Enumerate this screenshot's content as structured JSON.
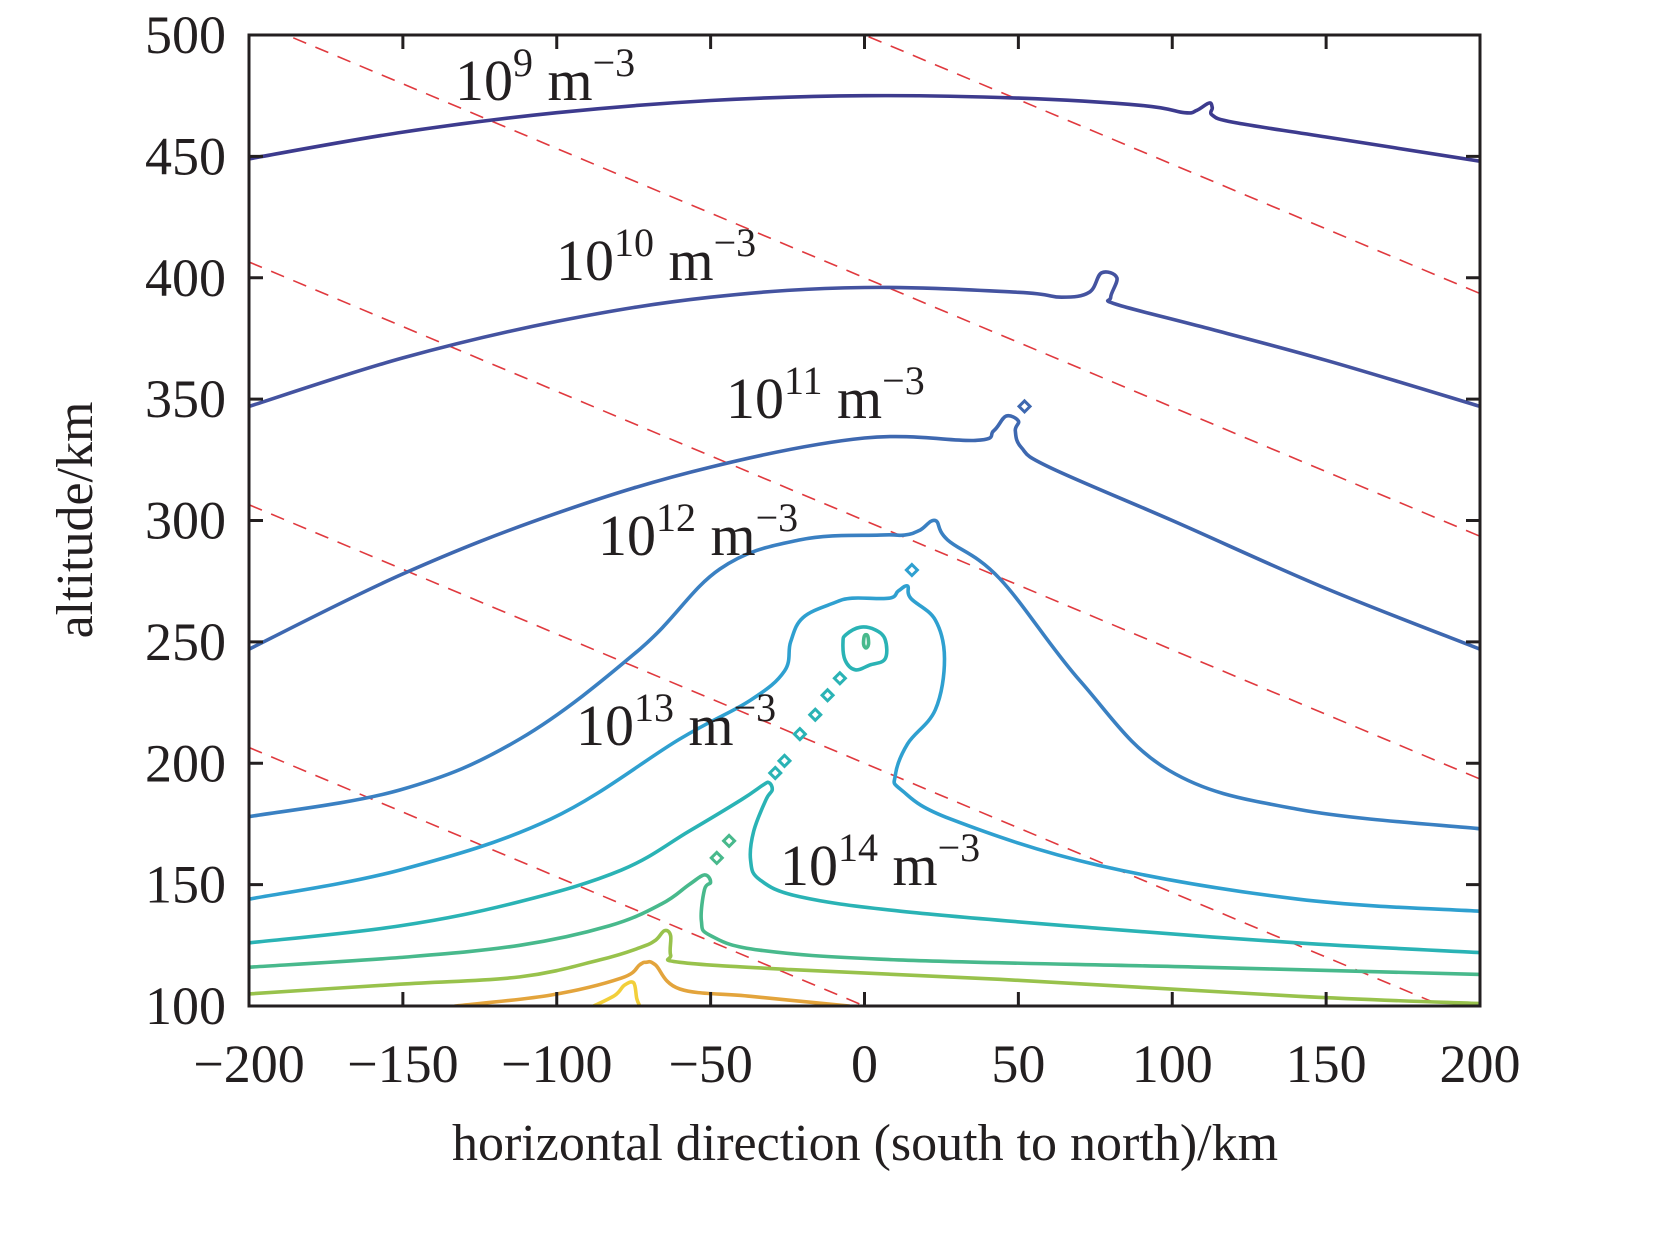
{
  "chart_data": {
    "type": "contour",
    "xlabel": "horizontal direction (south to north)/km",
    "ylabel": "altitude/km",
    "xlim": [
      -200,
      200
    ],
    "ylim": [
      100,
      500
    ],
    "xticks": [
      {
        "value": -200,
        "label": "−200"
      },
      {
        "value": -150,
        "label": "−150"
      },
      {
        "value": -100,
        "label": "−100"
      },
      {
        "value": -50,
        "label": "−50"
      },
      {
        "value": 0,
        "label": "0"
      },
      {
        "value": 50,
        "label": "50"
      },
      {
        "value": 100,
        "label": "100"
      },
      {
        "value": 150,
        "label": "150"
      },
      {
        "value": 200,
        "label": "200"
      }
    ],
    "yticks": [
      {
        "value": 100,
        "label": "100"
      },
      {
        "value": 150,
        "label": "150"
      },
      {
        "value": 200,
        "label": "200"
      },
      {
        "value": 250,
        "label": "250"
      },
      {
        "value": 300,
        "label": "300"
      },
      {
        "value": 350,
        "label": "350"
      },
      {
        "value": 400,
        "label": "400"
      },
      {
        "value": 450,
        "label": "450"
      },
      {
        "value": 500,
        "label": "500"
      }
    ],
    "grid": false,
    "contour_unit": "m",
    "unit_exponent": "−3",
    "contours": [
      {
        "level": "1e9",
        "base": "10",
        "exponent": "9",
        "color": "#3d3b8e",
        "points": [
          [
            -200,
            449
          ],
          [
            -150,
            460
          ],
          [
            -100,
            468
          ],
          [
            -50,
            473
          ],
          [
            0,
            475
          ],
          [
            50,
            474
          ],
          [
            90,
            471
          ],
          [
            104,
            468
          ],
          [
            108,
            469
          ],
          [
            112,
            472
          ],
          [
            113,
            470
          ],
          [
            113,
            467
          ],
          [
            120,
            464
          ],
          [
            150,
            458
          ],
          [
            200,
            448
          ]
        ]
      },
      {
        "level": "1e10",
        "base": "10",
        "exponent": "10",
        "color": "#4453a0",
        "points": [
          [
            -200,
            347
          ],
          [
            -150,
            367
          ],
          [
            -100,
            382
          ],
          [
            -50,
            392
          ],
          [
            0,
            396
          ],
          [
            50,
            394
          ],
          [
            64,
            392
          ],
          [
            73,
            394
          ],
          [
            77,
            402
          ],
          [
            82,
            400
          ],
          [
            80,
            392
          ],
          [
            82,
            389
          ],
          [
            109,
            380
          ],
          [
            150,
            366
          ],
          [
            200,
            347
          ]
        ]
      },
      {
        "level": "1e11",
        "base": "10",
        "exponent": "11",
        "color": "#3e68b0",
        "points": [
          [
            -200,
            247
          ],
          [
            -150,
            278
          ],
          [
            -100,
            303
          ],
          [
            -50,
            322
          ],
          [
            0,
            334
          ],
          [
            36,
            333
          ],
          [
            42,
            337
          ],
          [
            46,
            343
          ],
          [
            50,
            341
          ],
          [
            49,
            337
          ],
          [
            51,
            330
          ],
          [
            60,
            322
          ],
          [
            100,
            300
          ],
          [
            150,
            272
          ],
          [
            200,
            247
          ]
        ]
      },
      {
        "level": "1e12",
        "base": "10",
        "exponent": "12",
        "color": "#3a80c2",
        "points": [
          [
            -200,
            178
          ],
          [
            -151,
            189
          ],
          [
            -112,
            210
          ],
          [
            -73,
            247
          ],
          [
            -47,
            280
          ],
          [
            -21,
            292
          ],
          [
            5,
            294
          ],
          [
            13,
            294
          ],
          [
            18,
            296
          ],
          [
            23,
            300
          ],
          [
            27,
            292
          ],
          [
            44,
            276
          ],
          [
            70,
            234
          ],
          [
            99,
            197
          ],
          [
            141,
            181
          ],
          [
            200,
            173
          ]
        ]
      },
      {
        "level": "1e13",
        "base": "10",
        "exponent": "13",
        "color": "#2fa0d0",
        "points": [
          [
            -200,
            144
          ],
          [
            -151,
            156
          ],
          [
            -102,
            177
          ],
          [
            -60,
            210
          ],
          [
            -37,
            226
          ],
          [
            -26,
            238
          ],
          [
            -24,
            250
          ],
          [
            -20,
            260
          ],
          [
            -10,
            266
          ],
          [
            -4,
            268
          ],
          [
            8,
            268
          ],
          [
            11,
            271
          ],
          [
            14,
            273
          ],
          [
            15,
            268
          ],
          [
            23,
            259
          ],
          [
            26,
            243
          ],
          [
            23,
            222
          ],
          [
            14,
            208
          ],
          [
            10,
            195
          ],
          [
            12,
            189
          ],
          [
            28,
            177
          ],
          [
            76,
            158
          ],
          [
            141,
            144
          ],
          [
            200,
            139
          ]
        ]
      },
      {
        "level": "1e14",
        "base": "10",
        "exponent": "14",
        "color": "#2ab3b5",
        "points": [
          [
            -200,
            126
          ],
          [
            -151,
            133
          ],
          [
            -112,
            143
          ],
          [
            -79,
            156
          ],
          [
            -57,
            172
          ],
          [
            -40,
            185
          ],
          [
            -33,
            191
          ],
          [
            -31,
            192
          ],
          [
            -30,
            189
          ],
          [
            -32,
            185
          ],
          [
            -36,
            172
          ],
          [
            -37,
            160
          ],
          [
            -34,
            152
          ],
          [
            -21,
            145
          ],
          [
            12,
            139
          ],
          [
            76,
            132
          ],
          [
            141,
            126
          ],
          [
            200,
            122
          ]
        ]
      },
      {
        "level": "",
        "color": "#48b98c",
        "points": [
          [
            -200,
            116
          ],
          [
            -151,
            120
          ],
          [
            -112,
            125
          ],
          [
            -83,
            133
          ],
          [
            -66,
            142
          ],
          [
            -57,
            150
          ],
          [
            -52,
            154
          ],
          [
            -50,
            151
          ],
          [
            -52,
            148
          ],
          [
            -53,
            135
          ],
          [
            -50,
            129
          ],
          [
            -34,
            123
          ],
          [
            11,
            119
          ],
          [
            109,
            116
          ],
          [
            200,
            113
          ]
        ]
      },
      {
        "level": "",
        "color": "#98c24c",
        "points": [
          [
            -200,
            105
          ],
          [
            -151,
            109
          ],
          [
            -112,
            112
          ],
          [
            -86,
            119
          ],
          [
            -73,
            124
          ],
          [
            -68,
            127
          ],
          [
            -65,
            131
          ],
          [
            -63,
            129
          ],
          [
            -63,
            121
          ],
          [
            -60,
            118
          ],
          [
            -24,
            115
          ],
          [
            44,
            111
          ],
          [
            141,
            104
          ],
          [
            200,
            101
          ]
        ]
      },
      {
        "level": "",
        "color": "#e3a43c",
        "points": [
          [
            -133,
            100
          ],
          [
            -102,
            104.5
          ],
          [
            -79,
            111.5
          ],
          [
            -73,
            117
          ],
          [
            -71,
            118
          ],
          [
            -68,
            117
          ],
          [
            -60,
            107
          ],
          [
            -37,
            104
          ],
          [
            -5,
            100
          ]
        ]
      },
      {
        "level": "",
        "color": "#f2cf3a",
        "points": [
          [
            -88,
            100
          ],
          [
            -81,
            104.5
          ],
          [
            -78,
            108.6
          ],
          [
            -75,
            109.5
          ],
          [
            -74,
            103
          ],
          [
            -73,
            100
          ]
        ]
      }
    ],
    "closed_contours": [
      {
        "color": "#2ab3b5",
        "points": [
          [
            -6,
            253
          ],
          [
            -1.5,
            256
          ],
          [
            3.4,
            255
          ],
          [
            6.7,
            251
          ],
          [
            6.7,
            243
          ],
          [
            1.8,
            240.5
          ],
          [
            -3,
            238.5
          ],
          [
            -6.3,
            242.5
          ],
          [
            -7,
            250
          ]
        ]
      },
      {
        "color": "#48b98c",
        "points": [
          [
            0,
            252.5
          ],
          [
            1,
            252.5
          ],
          [
            1.3,
            249
          ],
          [
            0.5,
            247.5
          ],
          [
            -0.3,
            249
          ]
        ]
      }
    ],
    "islands": [
      {
        "x": 52,
        "y": 347,
        "color": "#3e68b0"
      },
      {
        "x": 15.4,
        "y": 279.6,
        "color": "#2fa0d0"
      },
      {
        "x": -8,
        "y": 235,
        "color": "#2ab3b5"
      },
      {
        "x": -12,
        "y": 228,
        "color": "#2ab3b5"
      },
      {
        "x": -16,
        "y": 220,
        "color": "#2ab3b5"
      },
      {
        "x": -21,
        "y": 212,
        "color": "#2ab3b5"
      },
      {
        "x": -26,
        "y": 201,
        "color": "#2ab3b5"
      },
      {
        "x": -29,
        "y": 196,
        "color": "#2ab3b5"
      },
      {
        "x": -44,
        "y": 168,
        "color": "#48b98c"
      },
      {
        "x": -48,
        "y": 161,
        "color": "#48b98c"
      }
    ],
    "field_lines": {
      "style": "dashed",
      "color": "#e0393e",
      "slope": -0.5325,
      "intercepts_at_x0": [
        100,
        200,
        300,
        400,
        500
      ]
    }
  }
}
